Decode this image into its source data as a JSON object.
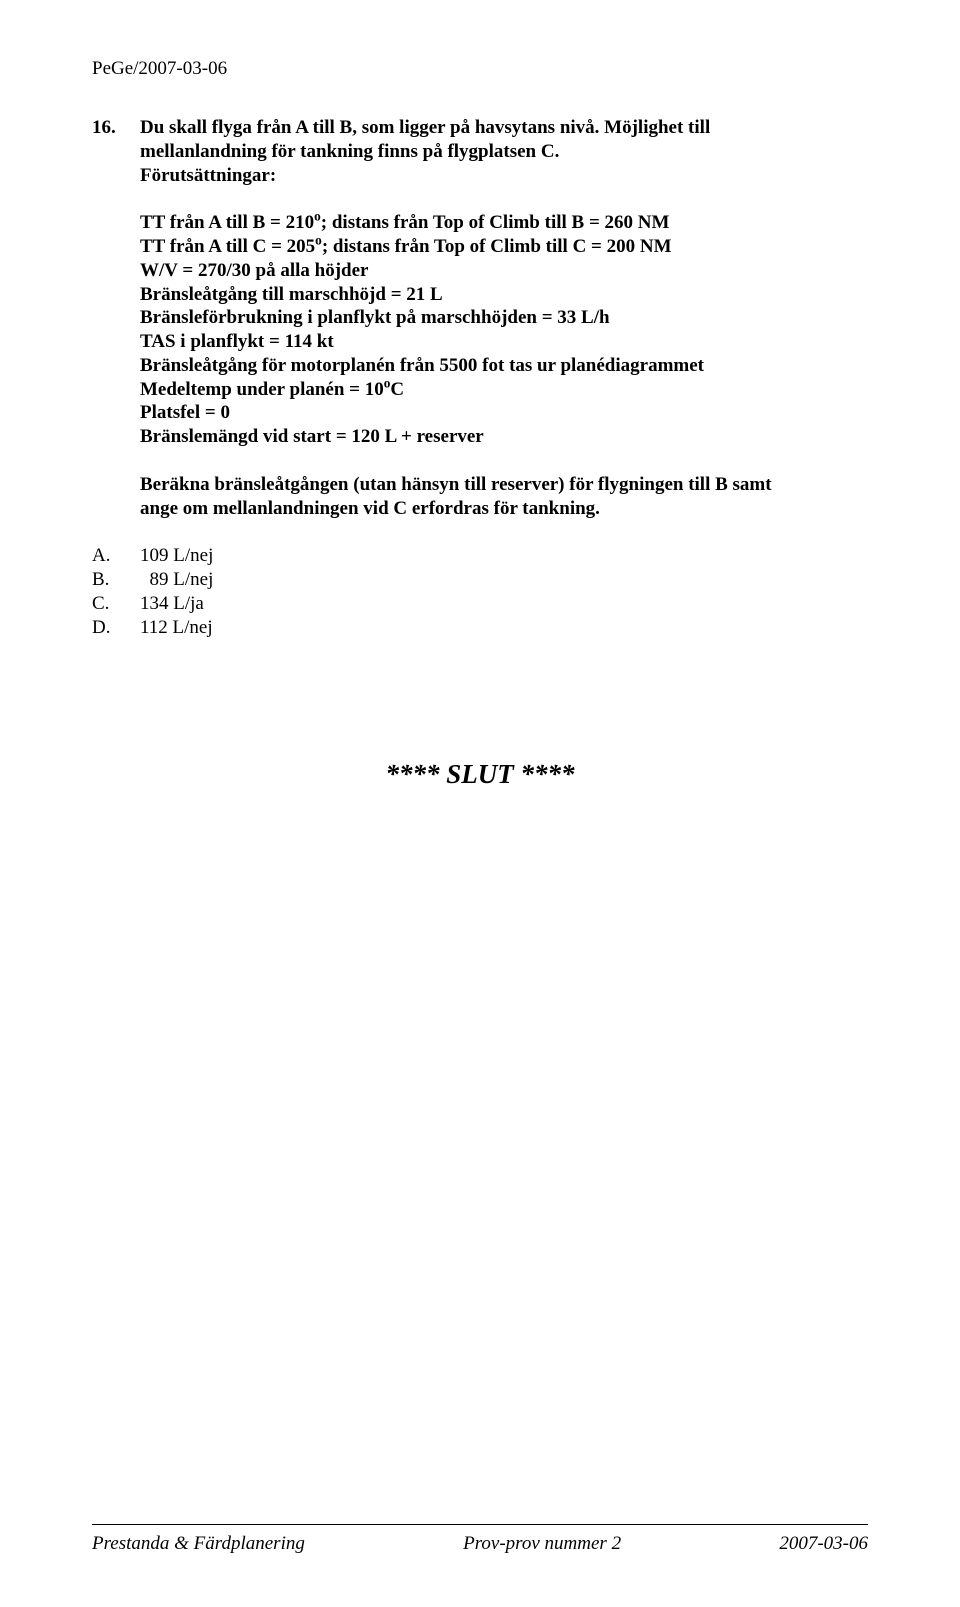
{
  "header": "PeGe/2007-03-06",
  "question": {
    "number": "16.",
    "intro_lines": [
      "Du skall flyga från A till B, som ligger på havsytans nivå. Möjlighet till",
      "mellanlandning för tankning finns på flygplatsen C.",
      "Förutsättningar:"
    ],
    "conditions_pre_sup": [
      "TT från A till B = 210",
      "TT från A till C = 205"
    ],
    "sup": "o",
    "conditions_post_sup": [
      "; distans från Top of Climb till B = 260 NM",
      "; distans från Top of Climb till C = 200 NM"
    ],
    "conditions_plain": [
      "W/V = 270/30 på alla höjder",
      "Bränsleåtgång till marschhöjd = 21 L",
      "Bränsleförbrukning i planflykt på marschhöjden = 33 L/h",
      "TAS i planflykt = 114 kt",
      "Bränsleåtgång för motorplanén från 5500 fot tas ur planédiagrammet"
    ],
    "temp_pre": "Medeltemp under planén = 10",
    "temp_sup": "o",
    "temp_post": "C",
    "conditions_tail": [
      "Platsfel = 0",
      "Bränslemängd vid start = 120 L + reserver"
    ],
    "ask_lines": [
      "Beräkna bränsleåtgången (utan hänsyn till reserver) för flygningen till B samt",
      "ange om mellanlandningen vid C erfordras för tankning."
    ]
  },
  "options": [
    {
      "letter": "A.",
      "value": "109 L/nej"
    },
    {
      "letter": "B.",
      "value": "  89 L/nej"
    },
    {
      "letter": "C.",
      "value": "134 L/ja"
    },
    {
      "letter": "D.",
      "value": "112 L/nej"
    }
  ],
  "slut": "**** SLUT ****",
  "footer": {
    "left": "Prestanda & Färdplanering",
    "center": "Prov-prov nummer 2",
    "right": "2007-03-06"
  }
}
